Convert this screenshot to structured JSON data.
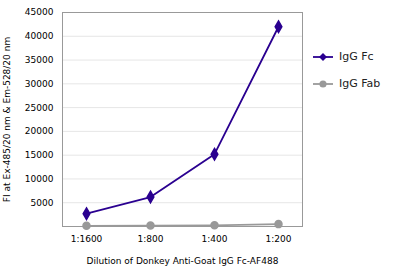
{
  "chart_data": {
    "type": "line",
    "categories": [
      "1:1600",
      "1:800",
      "1:400",
      "1:200"
    ],
    "series": [
      {
        "name": "IgG Fc",
        "color": "#2a0090",
        "marker": "diamond",
        "values": [
          2700,
          6200,
          15200,
          42000
        ]
      },
      {
        "name": "IgG Fab",
        "color": "#999999",
        "marker": "circle",
        "values": [
          150,
          200,
          250,
          500
        ]
      }
    ],
    "xlabel": "Dilution of Donkey Anti-Goat IgG Fc-AF488",
    "ylabel": "FI at Ex-485/20 nm & Em-528/20 nm",
    "ylim": [
      0,
      45000
    ],
    "yticks": [
      5000,
      10000,
      15000,
      20000,
      25000,
      30000,
      35000,
      40000,
      45000
    ],
    "grid": true,
    "legend": "right"
  }
}
